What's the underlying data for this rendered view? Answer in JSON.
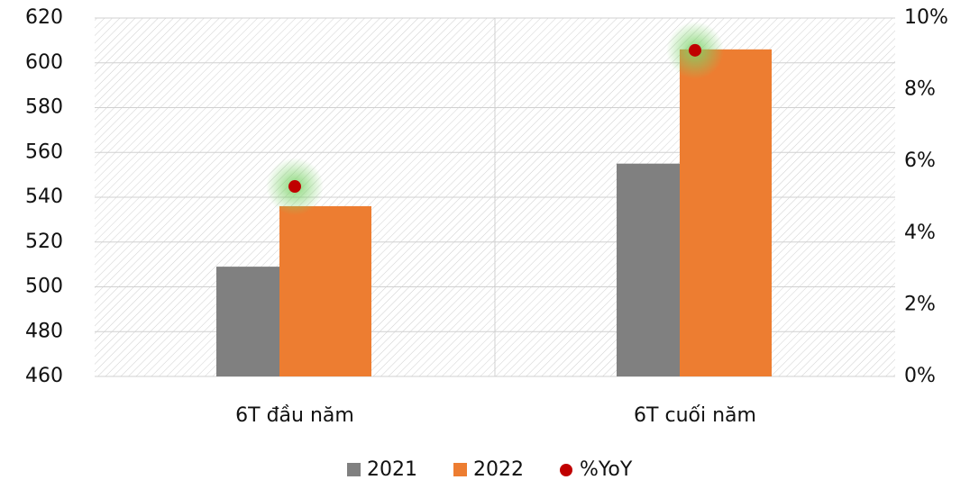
{
  "chart_data": {
    "type": "bar",
    "categories": [
      "6T đầu năm",
      "6T cuối năm"
    ],
    "series": [
      {
        "name": "2021",
        "color": "#808080",
        "values": [
          509,
          555
        ]
      },
      {
        "name": "2022",
        "color": "#ED7D31",
        "values": [
          536,
          606
        ]
      },
      {
        "name": "%YoY",
        "color": "#C00000",
        "type": "scatter",
        "axis": "y2",
        "values": [
          5.3,
          9.1
        ]
      }
    ],
    "ylim": [
      460,
      620
    ],
    "yticks": [
      460,
      480,
      500,
      520,
      540,
      560,
      580,
      600,
      620
    ],
    "y2lim": [
      0,
      10
    ],
    "y2ticks": [
      {
        "value": 0,
        "label": "0%"
      },
      {
        "value": 2,
        "label": "2%"
      },
      {
        "value": 4,
        "label": "4%"
      },
      {
        "value": 6,
        "label": "6%"
      },
      {
        "value": 8,
        "label": "8%"
      },
      {
        "value": 10,
        "label": "10%"
      }
    ],
    "grid": true,
    "legend": "bottom"
  }
}
